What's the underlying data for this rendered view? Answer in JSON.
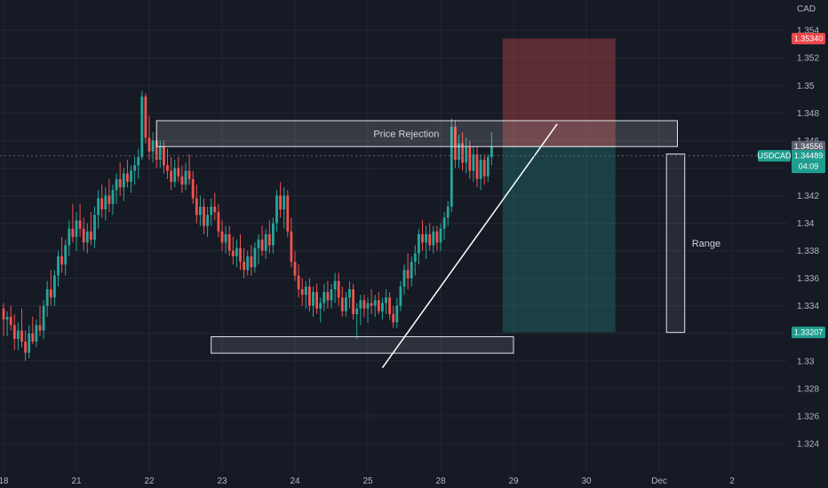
{
  "chart_data": {
    "type": "candlestick",
    "symbol": "USDCAD",
    "currency_label": "CAD",
    "x_ticks": [
      {
        "label": "18",
        "i": 0
      },
      {
        "label": "21",
        "i": 20
      },
      {
        "label": "22",
        "i": 40
      },
      {
        "label": "23",
        "i": 60
      },
      {
        "label": "24",
        "i": 80
      },
      {
        "label": "25",
        "i": 100
      },
      {
        "label": "28",
        "i": 120
      },
      {
        "label": "29",
        "i": 140
      },
      {
        "label": "30",
        "i": 160
      },
      {
        "label": "Dec",
        "i": 180
      },
      {
        "label": "2",
        "i": 200
      }
    ],
    "y_ticks": [
      1.354,
      1.352,
      1.35,
      1.348,
      1.346,
      1.344,
      1.342,
      1.34,
      1.338,
      1.336,
      1.334,
      1.332,
      1.33,
      1.328,
      1.326,
      1.324
    ],
    "ylim": [
      1.322,
      1.3562
    ],
    "grid": true,
    "candles": [
      [
        1.3338,
        1.3342,
        1.3318,
        1.333
      ],
      [
        1.333,
        1.3336,
        1.3318,
        1.3332
      ],
      [
        1.3332,
        1.334,
        1.3322,
        1.3326
      ],
      [
        1.3326,
        1.3334,
        1.3308,
        1.3316
      ],
      [
        1.3316,
        1.3328,
        1.3308,
        1.3322
      ],
      [
        1.3322,
        1.3338,
        1.331,
        1.3314
      ],
      [
        1.3314,
        1.3322,
        1.33,
        1.3306
      ],
      [
        1.3306,
        1.3326,
        1.3302,
        1.332
      ],
      [
        1.332,
        1.3332,
        1.3312,
        1.3314
      ],
      [
        1.3314,
        1.333,
        1.331,
        1.3326
      ],
      [
        1.3326,
        1.334,
        1.3318,
        1.3322
      ],
      [
        1.3322,
        1.3344,
        1.3316,
        1.334
      ],
      [
        1.334,
        1.3358,
        1.3332,
        1.3352
      ],
      [
        1.3352,
        1.3366,
        1.334,
        1.3346
      ],
      [
        1.3346,
        1.3366,
        1.334,
        1.3362
      ],
      [
        1.3362,
        1.338,
        1.3354,
        1.3376
      ],
      [
        1.3376,
        1.339,
        1.3364,
        1.337
      ],
      [
        1.337,
        1.3388,
        1.3362,
        1.3384
      ],
      [
        1.3384,
        1.3402,
        1.3376,
        1.3396
      ],
      [
        1.3396,
        1.3414,
        1.3386,
        1.339
      ],
      [
        1.339,
        1.3408,
        1.338,
        1.3402
      ],
      [
        1.3402,
        1.3414,
        1.339,
        1.3396
      ],
      [
        1.3396,
        1.3404,
        1.338,
        1.3386
      ],
      [
        1.3386,
        1.34,
        1.3378,
        1.3394
      ],
      [
        1.3394,
        1.3408,
        1.3384,
        1.3388
      ],
      [
        1.3388,
        1.3412,
        1.3382,
        1.3406
      ],
      [
        1.3406,
        1.3424,
        1.3396,
        1.3418
      ],
      [
        1.3418,
        1.3428,
        1.3404,
        1.341
      ],
      [
        1.341,
        1.3426,
        1.3402,
        1.342
      ],
      [
        1.342,
        1.3432,
        1.3408,
        1.3414
      ],
      [
        1.3414,
        1.3428,
        1.3406,
        1.3424
      ],
      [
        1.3424,
        1.3436,
        1.3414,
        1.3432
      ],
      [
        1.3432,
        1.3444,
        1.342,
        1.3426
      ],
      [
        1.3426,
        1.344,
        1.3416,
        1.3436
      ],
      [
        1.3436,
        1.3446,
        1.3426,
        1.343
      ],
      [
        1.343,
        1.3442,
        1.3422,
        1.3438
      ],
      [
        1.3438,
        1.3448,
        1.3428,
        1.3442
      ],
      [
        1.3442,
        1.3454,
        1.3432,
        1.3448
      ],
      [
        1.3448,
        1.3496,
        1.3446,
        1.3492
      ],
      [
        1.3492,
        1.3494,
        1.3458,
        1.3462
      ],
      [
        1.3462,
        1.3478,
        1.3446,
        1.3452
      ],
      [
        1.3452,
        1.3466,
        1.3444,
        1.346
      ],
      [
        1.346,
        1.3466,
        1.344,
        1.3446
      ],
      [
        1.3446,
        1.346,
        1.344,
        1.3456
      ],
      [
        1.3456,
        1.346,
        1.3436,
        1.3442
      ],
      [
        1.3442,
        1.3454,
        1.3432,
        1.3438
      ],
      [
        1.3438,
        1.3448,
        1.3424,
        1.343
      ],
      [
        1.343,
        1.3446,
        1.3426,
        1.344
      ],
      [
        1.344,
        1.3448,
        1.343,
        1.3434
      ],
      [
        1.3434,
        1.3442,
        1.3422,
        1.3428
      ],
      [
        1.3428,
        1.3444,
        1.3424,
        1.3438
      ],
      [
        1.3438,
        1.345,
        1.3428,
        1.3432
      ],
      [
        1.3432,
        1.3438,
        1.3414,
        1.3418
      ],
      [
        1.3418,
        1.3428,
        1.34,
        1.3406
      ],
      [
        1.3406,
        1.342,
        1.3398,
        1.3412
      ],
      [
        1.3412,
        1.3418,
        1.3392,
        1.3398
      ],
      [
        1.3398,
        1.3412,
        1.339,
        1.3406
      ],
      [
        1.3406,
        1.3418,
        1.3398,
        1.3412
      ],
      [
        1.3412,
        1.3422,
        1.3402,
        1.3408
      ],
      [
        1.3408,
        1.3414,
        1.339,
        1.3394
      ],
      [
        1.3394,
        1.3402,
        1.338,
        1.3386
      ],
      [
        1.3386,
        1.3398,
        1.3378,
        1.3392
      ],
      [
        1.3392,
        1.3398,
        1.3376,
        1.338
      ],
      [
        1.338,
        1.339,
        1.337,
        1.3376
      ],
      [
        1.3376,
        1.3388,
        1.3368,
        1.3382
      ],
      [
        1.3382,
        1.3392,
        1.3366,
        1.3372
      ],
      [
        1.3372,
        1.3382,
        1.336,
        1.3366
      ],
      [
        1.3366,
        1.338,
        1.3362,
        1.3376
      ],
      [
        1.3376,
        1.3384,
        1.3362,
        1.3368
      ],
      [
        1.3368,
        1.3386,
        1.3364,
        1.3382
      ],
      [
        1.3382,
        1.3392,
        1.337,
        1.3388
      ],
      [
        1.3388,
        1.3398,
        1.3376,
        1.338
      ],
      [
        1.338,
        1.3396,
        1.3374,
        1.3392
      ],
      [
        1.3392,
        1.3402,
        1.3378,
        1.3384
      ],
      [
        1.3384,
        1.3404,
        1.3378,
        1.34
      ],
      [
        1.34,
        1.3424,
        1.3394,
        1.342
      ],
      [
        1.342,
        1.343,
        1.3404,
        1.341
      ],
      [
        1.341,
        1.3426,
        1.3396,
        1.342
      ],
      [
        1.342,
        1.3424,
        1.339,
        1.3394
      ],
      [
        1.3394,
        1.3404,
        1.3368,
        1.3372
      ],
      [
        1.3372,
        1.338,
        1.3358,
        1.3362
      ],
      [
        1.3362,
        1.337,
        1.3346,
        1.3352
      ],
      [
        1.3352,
        1.336,
        1.334,
        1.3348
      ],
      [
        1.3348,
        1.3358,
        1.3338,
        1.3354
      ],
      [
        1.3354,
        1.336,
        1.3336,
        1.334
      ],
      [
        1.334,
        1.3354,
        1.3332,
        1.335
      ],
      [
        1.335,
        1.3356,
        1.3334,
        1.3338
      ],
      [
        1.3338,
        1.3346,
        1.3328,
        1.3342
      ],
      [
        1.3342,
        1.3356,
        1.3336,
        1.335
      ],
      [
        1.335,
        1.3358,
        1.3338,
        1.3344
      ],
      [
        1.3344,
        1.3356,
        1.3338,
        1.3352
      ],
      [
        1.3352,
        1.3364,
        1.3342,
        1.3358
      ],
      [
        1.3358,
        1.3364,
        1.334,
        1.3346
      ],
      [
        1.3346,
        1.3354,
        1.3332,
        1.3336
      ],
      [
        1.3336,
        1.335,
        1.3332,
        1.3346
      ],
      [
        1.3346,
        1.3358,
        1.3338,
        1.3352
      ],
      [
        1.3352,
        1.3356,
        1.333,
        1.3334
      ],
      [
        1.3334,
        1.3342,
        1.3316,
        1.3338
      ],
      [
        1.3338,
        1.3348,
        1.3326,
        1.3344
      ],
      [
        1.3344,
        1.3348,
        1.3332,
        1.3338
      ],
      [
        1.3338,
        1.3346,
        1.3328,
        1.3342
      ],
      [
        1.3342,
        1.3352,
        1.3334,
        1.334
      ],
      [
        1.334,
        1.3348,
        1.3332,
        1.3344
      ],
      [
        1.3344,
        1.335,
        1.3334,
        1.3336
      ],
      [
        1.3336,
        1.3346,
        1.333,
        1.3342
      ],
      [
        1.3342,
        1.3352,
        1.3334,
        1.3346
      ],
      [
        1.3346,
        1.335,
        1.333,
        1.3334
      ],
      [
        1.3334,
        1.334,
        1.3324,
        1.3328
      ],
      [
        1.3328,
        1.3346,
        1.3324,
        1.334
      ],
      [
        1.334,
        1.3358,
        1.3336,
        1.3354
      ],
      [
        1.3354,
        1.337,
        1.3348,
        1.3366
      ],
      [
        1.3366,
        1.3378,
        1.3352,
        1.336
      ],
      [
        1.336,
        1.3376,
        1.3354,
        1.3372
      ],
      [
        1.3372,
        1.3384,
        1.3362,
        1.3378
      ],
      [
        1.3378,
        1.3396,
        1.337,
        1.3392
      ],
      [
        1.3392,
        1.3402,
        1.338,
        1.3386
      ],
      [
        1.3386,
        1.3398,
        1.3374,
        1.3392
      ],
      [
        1.3392,
        1.34,
        1.338,
        1.3384
      ],
      [
        1.3384,
        1.3398,
        1.3378,
        1.3394
      ],
      [
        1.3394,
        1.3398,
        1.338,
        1.3386
      ],
      [
        1.3386,
        1.34,
        1.338,
        1.3396
      ],
      [
        1.3396,
        1.3408,
        1.3388,
        1.3404
      ],
      [
        1.3404,
        1.3416,
        1.3398,
        1.3412
      ],
      [
        1.3412,
        1.3476,
        1.3408,
        1.347
      ],
      [
        1.347,
        1.3474,
        1.344,
        1.3446
      ],
      [
        1.3446,
        1.3464,
        1.344,
        1.3458
      ],
      [
        1.3458,
        1.3466,
        1.3438,
        1.3444
      ],
      [
        1.3444,
        1.3462,
        1.3436,
        1.3456
      ],
      [
        1.3456,
        1.346,
        1.3432,
        1.3438
      ],
      [
        1.3438,
        1.3456,
        1.343,
        1.345
      ],
      [
        1.345,
        1.3456,
        1.3426,
        1.3432
      ],
      [
        1.3432,
        1.345,
        1.3424,
        1.3446
      ],
      [
        1.3446,
        1.345,
        1.3428,
        1.3434
      ],
      [
        1.3434,
        1.345,
        1.343,
        1.3448
      ],
      [
        1.3448,
        1.3466,
        1.3442,
        1.3456
      ]
    ],
    "price_rejection_zone": {
      "label": "Price Rejection",
      "from": 1.34556,
      "to": 1.34744,
      "i_start": 42,
      "i_end": 185
    },
    "support_zone": {
      "from": 1.33056,
      "to": 1.33176,
      "i_start": 57,
      "i_end": 140
    },
    "trendline": {
      "i_start": 104,
      "p_start": 1.3295,
      "i_end": 152,
      "p_end": 1.3472
    },
    "short_position": {
      "entry": 1.34556,
      "stop": 1.3534,
      "target": 1.33207,
      "i_start": 137,
      "i_end": 168
    },
    "range_marker": {
      "label": "Range",
      "from": 1.33207,
      "to": 1.34502,
      "i_start": 182,
      "i_end": 187
    },
    "current_price": 1.34489,
    "countdown": "04:09",
    "price_tags": {
      "stop": "1.35340",
      "entry": "1.34556",
      "current": "1.34489",
      "target": "1.33207"
    },
    "colors": {
      "up": "#26a69a",
      "down": "#ef5350",
      "background": "#161a25",
      "grid": "#232733",
      "stop_zone": "#ef5350",
      "target_zone": "#26a69a"
    }
  }
}
